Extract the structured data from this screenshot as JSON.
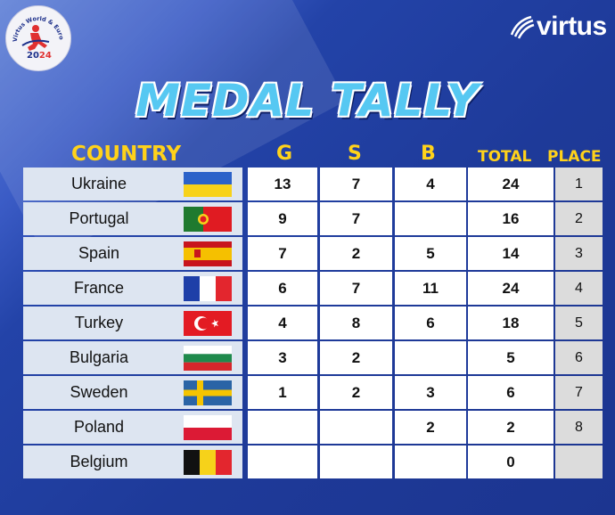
{
  "title": "MEDAL TALLY",
  "brand": "virtus",
  "event_logo": {
    "arc_text": "Virtus World & European Indoor Athletics",
    "year_a": "20",
    "year_b": "24"
  },
  "headers": {
    "country": "COUNTRY",
    "gold": "G",
    "silver": "S",
    "bronze": "B",
    "total": "TOTAL",
    "place": "PLACE"
  },
  "rows": [
    {
      "country": "Ukraine",
      "flag": "ukraine-flag",
      "g": "13",
      "s": "7",
      "b": "4",
      "total": "24",
      "place": "1"
    },
    {
      "country": "Portugal",
      "flag": "portugal-flag",
      "g": "9",
      "s": "7",
      "b": "",
      "total": "16",
      "place": "2"
    },
    {
      "country": "Spain",
      "flag": "spain-flag",
      "g": "7",
      "s": "2",
      "b": "5",
      "total": "14",
      "place": "3"
    },
    {
      "country": "France",
      "flag": "france-flag",
      "g": "6",
      "s": "7",
      "b": "11",
      "total": "24",
      "place": "4"
    },
    {
      "country": "Turkey",
      "flag": "turkey-flag",
      "g": "4",
      "s": "8",
      "b": "6",
      "total": "18",
      "place": "5"
    },
    {
      "country": "Bulgaria",
      "flag": "bulgaria-flag",
      "g": "3",
      "s": "2",
      "b": "",
      "total": "5",
      "place": "6"
    },
    {
      "country": "Sweden",
      "flag": "sweden-flag",
      "g": "1",
      "s": "2",
      "b": "3",
      "total": "6",
      "place": "7"
    },
    {
      "country": "Poland",
      "flag": "poland-flag",
      "g": "",
      "s": "",
      "b": "2",
      "total": "2",
      "place": "8"
    },
    {
      "country": "Belgium",
      "flag": "belgium-flag",
      "g": "",
      "s": "",
      "b": "",
      "total": "0",
      "place": ""
    }
  ],
  "colors": {
    "background": "#1f3a9a",
    "title": "#56c8f2",
    "header": "#ffd21a",
    "country_cell": "#dde5f1",
    "place_cell": "#dcdcdc"
  }
}
